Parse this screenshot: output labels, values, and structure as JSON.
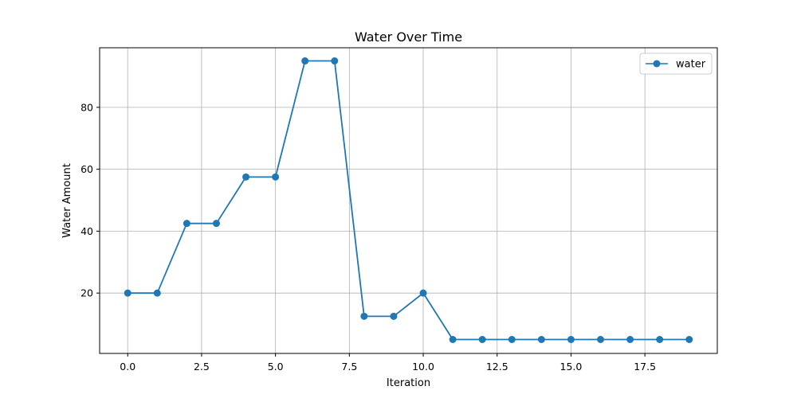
{
  "chart_data": {
    "type": "line",
    "title": "Water Over Time",
    "xlabel": "Iteration",
    "ylabel": "Water Amount",
    "xlim": [
      -0.95,
      19.95
    ],
    "ylim": [
      0.5,
      99.25
    ],
    "xticks": [
      0,
      2.5,
      5,
      7.5,
      10,
      12.5,
      15,
      17.5
    ],
    "xtick_labels": [
      "0.0",
      "2.5",
      "5.0",
      "7.5",
      "10.0",
      "12.5",
      "15.0",
      "17.5"
    ],
    "yticks": [
      20,
      40,
      60,
      80
    ],
    "ytick_labels": [
      "20",
      "40",
      "60",
      "80"
    ],
    "grid": true,
    "legend_position": "top-right",
    "series": [
      {
        "name": "water",
        "color": "#1f77b4",
        "marker": "circle",
        "x": [
          0,
          1,
          2,
          3,
          4,
          5,
          6,
          7,
          8,
          9,
          10,
          11,
          12,
          13,
          14,
          15,
          16,
          17,
          18,
          19
        ],
        "y": [
          20,
          20,
          42.5,
          42.5,
          57.5,
          57.5,
          95,
          95,
          12.5,
          12.5,
          20,
          5,
          5,
          5,
          5,
          5,
          5,
          5,
          5,
          5
        ]
      }
    ]
  }
}
